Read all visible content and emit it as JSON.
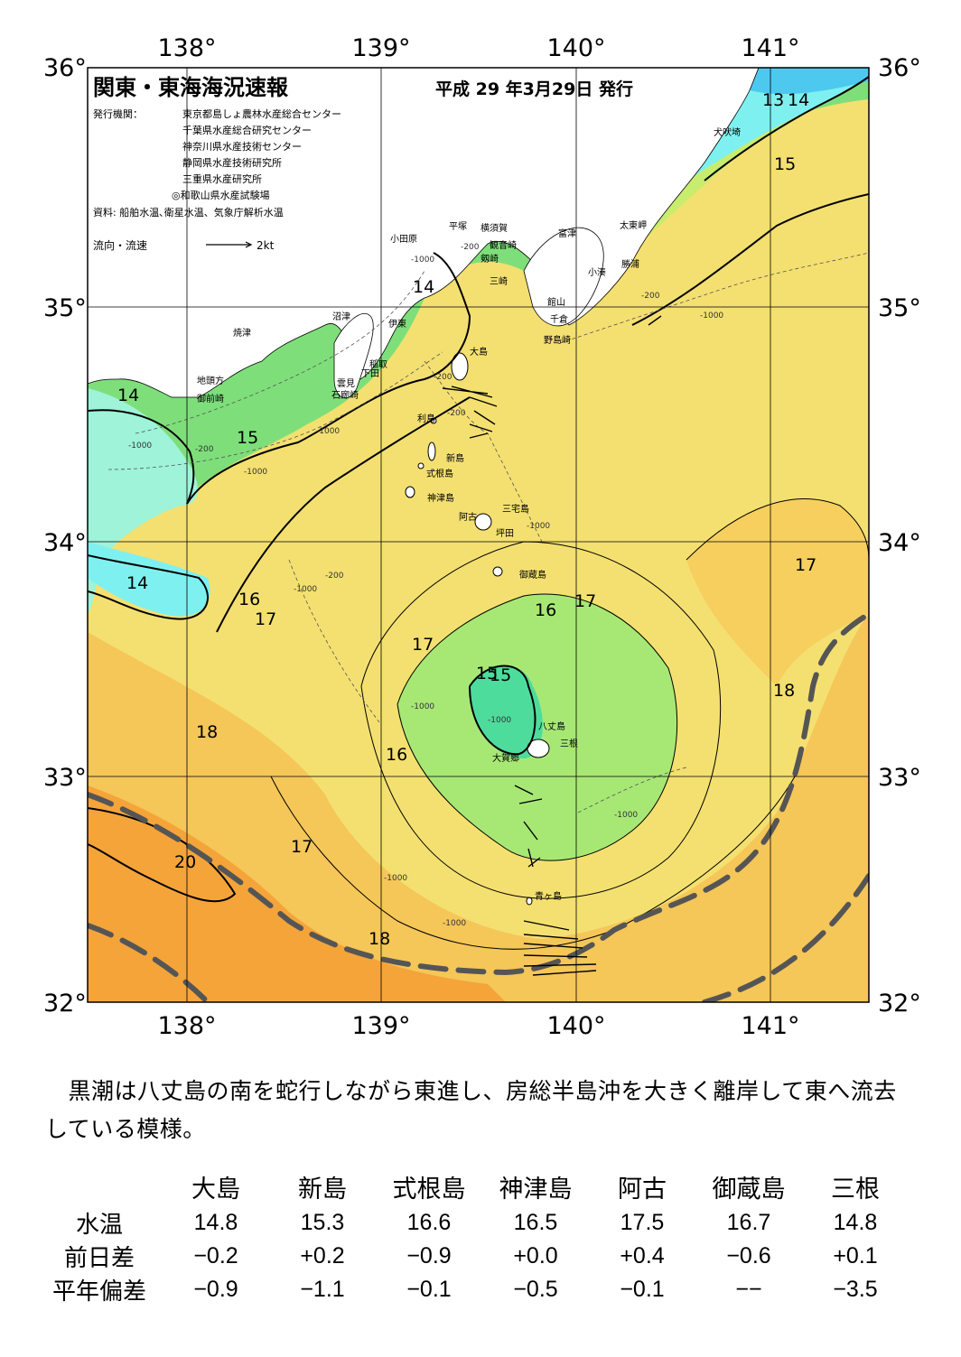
{
  "title": "関東・東海海況速報",
  "date": "平成 29 年3月29日 発行",
  "issuers_label": "発行機関：",
  "issuers": [
    "東京都島しょ農林水産総合センター",
    "千葉県水産総合研究センター",
    "神奈川県水産技術センター",
    "静岡県水産技術研究所",
    "三重県水産研究所",
    "◎和歌山県水産試験場"
  ],
  "sources": "資料: 船舶水温､衛星水温、気象庁解析水温",
  "legend": {
    "label": "流向・流速",
    "scale": "2kt"
  },
  "map": {
    "lon_range": [
      137.5,
      141.5
    ],
    "lat_range": [
      32,
      36
    ],
    "lon_ticks": [
      "138°",
      "139°",
      "140°",
      "141°"
    ],
    "lat_ticks": [
      "36°",
      "35°",
      "34°",
      "33°",
      "32°"
    ],
    "isotherm_labels": [
      "13",
      "14",
      "15",
      "14",
      "14",
      "15",
      "15",
      "14",
      "16",
      "17",
      "17",
      "16",
      "17",
      "17",
      "15",
      "18",
      "18",
      "16",
      "17",
      "20",
      "18"
    ],
    "depth_labels": [
      "-200",
      "-1000"
    ],
    "place_names": [
      "犬吠埼",
      "太東岬",
      "勝浦",
      "小湊",
      "富津",
      "館山",
      "千倉",
      "野島崎",
      "横須賀",
      "観音崎",
      "平塚",
      "剱崎",
      "三崎",
      "小田原",
      "沼津",
      "伊東",
      "焼津",
      "稲取",
      "下田",
      "雲見",
      "石廊崎",
      "地頭方",
      "御前崎",
      "大島",
      "利島",
      "新島",
      "式根島",
      "神津島",
      "三宅島",
      "阿古",
      "坪田",
      "御蔵島",
      "八丈島",
      "三根",
      "大賀郷",
      "青ヶ島"
    ]
  },
  "summary": "黒潮は八丈島の南を蛇行しながら東進し、房総半島沖を大きく離岸して東へ流去している模様。",
  "observations": {
    "stations": [
      "大島",
      "新島",
      "式根島",
      "神津島",
      "阿古",
      "御蔵島",
      "三根"
    ],
    "rows": [
      {
        "label": "水温",
        "values": [
          "14.8",
          "15.3",
          "16.6",
          "16.5",
          "17.5",
          "16.7",
          "14.8"
        ]
      },
      {
        "label": "前日差",
        "values": [
          "−0.2",
          "+0.2",
          "−0.9",
          "+0.0",
          "+0.4",
          "−0.6",
          "+0.1"
        ]
      },
      {
        "label": "平年偏差",
        "values": [
          "−0.9",
          "−1.1",
          "−0.1",
          "−0.5",
          "−0.1",
          "−−",
          "−3.5"
        ]
      }
    ]
  },
  "colors": {
    "t13": "#1a73e8",
    "t14": "#7ff0f0",
    "t15": "#4ddc9c",
    "t16": "#7fe07a",
    "t17": "#d7ef72",
    "t18": "#f7e06a",
    "t19": "#f6c45a",
    "t20": "#f5a43a",
    "land": "#ffffff",
    "kuroshio": "#555555"
  }
}
